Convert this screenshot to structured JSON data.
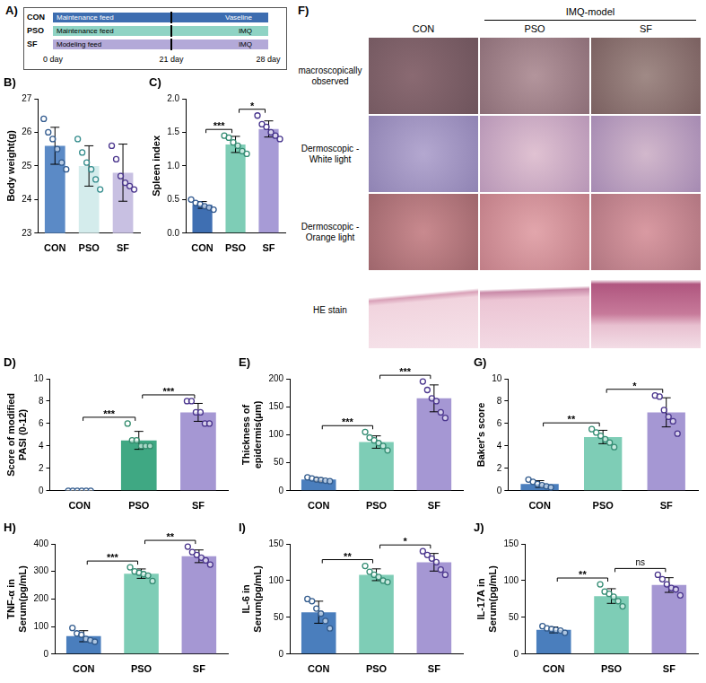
{
  "panel_A": {
    "panel": "A)",
    "rows": [
      {
        "group": "CON",
        "phases": [
          "Maintenance feed",
          "Vaseline"
        ]
      },
      {
        "group": "PSO",
        "phases": [
          "Maintenance feed",
          "IMQ"
        ]
      },
      {
        "group": "SF",
        "phases": [
          "Modeling feed",
          "IMQ"
        ]
      }
    ],
    "days": [
      "0 day",
      "21 day",
      "28 day"
    ]
  },
  "panel_F": {
    "panel": "F)",
    "group_label": "IMQ-model",
    "columns": [
      "CON",
      "PSO",
      "SF"
    ],
    "rows": [
      "macroscopically observed",
      "Dermoscopic - White light",
      "Dermoscopic - Orange light",
      "HE stain"
    ]
  },
  "chart_data": [
    {
      "panel": "B)",
      "type": "bar",
      "y_label": "Body weight(g)",
      "categories": [
        "CON",
        "PSO",
        "SF"
      ],
      "values": [
        25.6,
        25.0,
        24.8
      ],
      "errors": [
        0.55,
        0.6,
        0.85
      ],
      "points": [
        [
          26.4,
          26.0,
          25.8,
          25.5,
          25.1,
          24.9
        ],
        [
          25.8,
          25.4,
          25.1,
          24.9,
          24.6,
          24.3
        ],
        [
          25.6,
          25.2,
          24.7,
          24.5,
          24.4,
          24.3
        ]
      ],
      "colors": [
        "#5b8ac6",
        "#d4ecec",
        "#c8c0e2"
      ],
      "ylim": [
        23,
        27
      ],
      "yticks": [
        23,
        24,
        25,
        26,
        27
      ],
      "grid": false,
      "significance": []
    },
    {
      "panel": "C)",
      "type": "bar",
      "y_label": "Spleen index",
      "categories": [
        "CON",
        "PSO",
        "SF"
      ],
      "values": [
        0.42,
        1.32,
        1.55
      ],
      "errors": [
        0.05,
        0.12,
        0.12
      ],
      "points": [
        [
          0.5,
          0.45,
          0.43,
          0.4,
          0.38,
          0.35
        ],
        [
          1.45,
          1.42,
          1.35,
          1.3,
          1.22,
          1.18
        ],
        [
          1.75,
          1.62,
          1.58,
          1.5,
          1.45,
          1.4
        ]
      ],
      "colors": [
        "#3f6fb2",
        "#7ecdb6",
        "#a79bd6"
      ],
      "ylim": [
        0,
        2
      ],
      "yticks": [
        {
          "value": 0,
          "label": "0.0"
        },
        {
          "value": 0.5,
          "label": "0.5"
        },
        {
          "value": 1,
          "label": "1.0"
        },
        {
          "value": 1.5,
          "label": "1.5"
        },
        {
          "value": 2,
          "label": "2.0"
        }
      ],
      "grid": false,
      "significance": [
        {
          "from": "CON",
          "to": "PSO",
          "label": "***"
        },
        {
          "from": "PSO",
          "to": "SF",
          "label": "*"
        }
      ]
    },
    {
      "panel": "D)",
      "type": "bar",
      "y_label": "Score of modified PASI (0-12)",
      "categories": [
        "CON",
        "PSO",
        "SF"
      ],
      "values": [
        0,
        4.5,
        7.0
      ],
      "errors": [
        0,
        0.8,
        0.8
      ],
      "points": [
        [
          0,
          0,
          0,
          0,
          0,
          0
        ],
        [
          6.0,
          4.5,
          4.5,
          4.0,
          4.0,
          4.0
        ],
        [
          8.0,
          8.0,
          7.0,
          7.0,
          6.0,
          6.0
        ]
      ],
      "colors": [
        "#4a7ebd",
        "#3fa883",
        "#a597d3"
      ],
      "ylim": [
        0,
        10
      ],
      "yticks": [
        0,
        2,
        4,
        6,
        8,
        10
      ],
      "grid": false,
      "significance": [
        {
          "from": "CON",
          "to": "PSO",
          "label": "***"
        },
        {
          "from": "PSO",
          "to": "SF",
          "label": "***"
        }
      ]
    },
    {
      "panel": "E)",
      "type": "bar",
      "y_label": "Thickness of epidermis(μm)",
      "categories": [
        "CON",
        "PSO",
        "SF"
      ],
      "values": [
        20,
        87,
        165
      ],
      "errors": [
        3,
        11,
        24
      ],
      "points": [
        [
          24,
          22,
          20,
          19,
          18,
          17
        ],
        [
          105,
          95,
          90,
          85,
          80,
          72
        ],
        [
          195,
          180,
          165,
          160,
          140,
          130
        ]
      ],
      "colors": [
        "#4a7ebd",
        "#7ecdb6",
        "#a597d3"
      ],
      "ylim": [
        0,
        200
      ],
      "yticks": [
        0,
        50,
        100,
        150,
        200
      ],
      "grid": false,
      "significance": [
        {
          "from": "CON",
          "to": "PSO",
          "label": "***"
        },
        {
          "from": "PSO",
          "to": "SF",
          "label": "***"
        }
      ]
    },
    {
      "panel": "G)",
      "type": "bar",
      "y_label": "Baker's score",
      "categories": [
        "CON",
        "PSO",
        "SF"
      ],
      "values": [
        0.6,
        4.8,
        7.0
      ],
      "errors": [
        0.3,
        0.6,
        1.3
      ],
      "points": [
        [
          1.0,
          0.8,
          0.6,
          0.5,
          0.4,
          0.3
        ],
        [
          5.5,
          5.2,
          4.9,
          4.6,
          4.3,
          3.9
        ],
        [
          8.5,
          8.4,
          7.2,
          6.6,
          6.2,
          5.1
        ]
      ],
      "colors": [
        "#4a7ebd",
        "#7ecdb6",
        "#a597d3"
      ],
      "ylim": [
        0,
        10
      ],
      "yticks": [
        0,
        2,
        4,
        6,
        8,
        10
      ],
      "grid": false,
      "significance": [
        {
          "from": "CON",
          "to": "PSO",
          "label": "**"
        },
        {
          "from": "PSO",
          "to": "SF",
          "label": "*"
        }
      ]
    },
    {
      "panel": "H)",
      "type": "bar",
      "y_label": "TNF-α in Serum(pg/mL)",
      "categories": [
        "CON",
        "PSO",
        "SF"
      ],
      "values": [
        65,
        292,
        355
      ],
      "errors": [
        20,
        17,
        23
      ],
      "points": [
        [
          95,
          75,
          70,
          55,
          50,
          45
        ],
        [
          315,
          300,
          295,
          290,
          285,
          265
        ],
        [
          390,
          370,
          360,
          350,
          340,
          325
        ]
      ],
      "colors": [
        "#4a7ebd",
        "#7ecdb6",
        "#a597d3"
      ],
      "ylim": [
        0,
        400
      ],
      "yticks": [
        0,
        100,
        200,
        300,
        400
      ],
      "grid": false,
      "significance": [
        {
          "from": "CON",
          "to": "PSO",
          "label": "***"
        },
        {
          "from": "PSO",
          "to": "SF",
          "label": "**"
        }
      ]
    },
    {
      "panel": "I)",
      "type": "bar",
      "y_label": "IL-6 in Serum(pg/mL)",
      "categories": [
        "CON",
        "PSO",
        "SF"
      ],
      "values": [
        57,
        108,
        125
      ],
      "errors": [
        15,
        8,
        12
      ],
      "points": [
        [
          75,
          72,
          62,
          55,
          45,
          35
        ],
        [
          120,
          112,
          108,
          105,
          100,
          98
        ],
        [
          140,
          135,
          130,
          125,
          115,
          108
        ]
      ],
      "colors": [
        "#4a7ebd",
        "#7ecdb6",
        "#a597d3"
      ],
      "ylim": [
        0,
        150
      ],
      "yticks": [
        0,
        50,
        100,
        150
      ],
      "grid": false,
      "significance": [
        {
          "from": "CON",
          "to": "PSO",
          "label": "**"
        },
        {
          "from": "PSO",
          "to": "SF",
          "label": "*"
        }
      ]
    },
    {
      "panel": "J)",
      "type": "bar",
      "y_label": "IL-17A in Serum(pg/mL)",
      "categories": [
        "CON",
        "PSO",
        "SF"
      ],
      "values": [
        33,
        79,
        94
      ],
      "errors": [
        4,
        10,
        10
      ],
      "points": [
        [
          38,
          35,
          34,
          33,
          32,
          29
        ],
        [
          95,
          85,
          82,
          78,
          72,
          65
        ],
        [
          108,
          102,
          95,
          90,
          88,
          80
        ]
      ],
      "colors": [
        "#4a7ebd",
        "#7ecdb6",
        "#a597d3"
      ],
      "ylim": [
        0,
        150
      ],
      "yticks": [
        0,
        50,
        100,
        150
      ],
      "grid": false,
      "significance": [
        {
          "from": "CON",
          "to": "PSO",
          "label": "**"
        },
        {
          "from": "PSO",
          "to": "SF",
          "label": "ns"
        }
      ]
    }
  ]
}
